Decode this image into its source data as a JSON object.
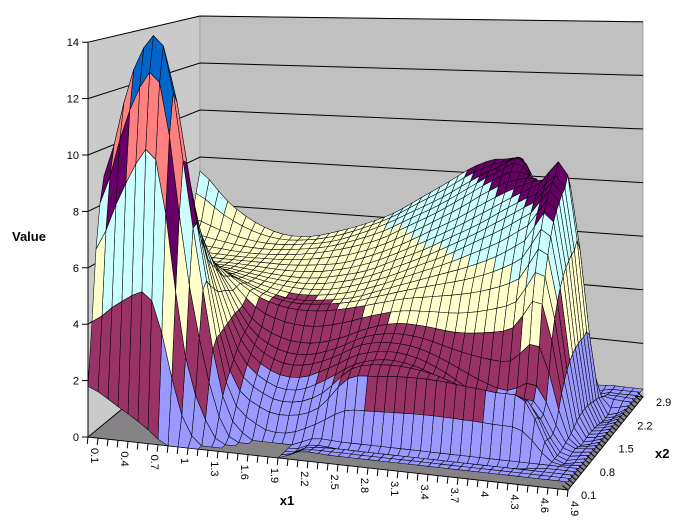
{
  "chart_data": {
    "type": "surface",
    "title": "",
    "value_axis": {
      "title": "Value",
      "min": 0,
      "max": 14,
      "major_unit": 2,
      "tick_labels": [
        "0",
        "2",
        "4",
        "6",
        "8",
        "10",
        "12",
        "14"
      ]
    },
    "x1_axis": {
      "title": "x1",
      "values": [
        0.1,
        0.4,
        0.7,
        1.0,
        1.3,
        1.6,
        1.9,
        2.2,
        2.5,
        2.8,
        3.1,
        3.4,
        3.7,
        4.0,
        4.3,
        4.6,
        4.9
      ],
      "tick_labels": [
        "0.1",
        "0.4",
        "0.7",
        "1",
        "1.3",
        "1.6",
        "1.9",
        "2.2",
        "2.5",
        "2.8",
        "3.1",
        "3.4",
        "3.7",
        "4",
        "4.3",
        "4.6",
        "4.9"
      ],
      "minor_tick_step": 0.1
    },
    "x2_axis": {
      "title": "x2",
      "values": [
        0.1,
        0.3,
        0.5,
        0.7,
        0.9,
        1.1,
        1.3,
        1.5,
        1.7,
        1.9,
        2.1,
        2.3,
        2.5,
        2.7,
        2.9
      ],
      "tick_labels": [
        "0.1",
        "0.8",
        "1.5",
        "2.2",
        "2.9"
      ],
      "minor_tick_step": 0.1
    },
    "bands": [
      {
        "min": 0,
        "max": 2,
        "color": "#9999FF"
      },
      {
        "min": 2,
        "max": 4,
        "color": "#993366"
      },
      {
        "min": 4,
        "max": 6,
        "color": "#FFFFCC"
      },
      {
        "min": 6,
        "max": 8,
        "color": "#CCFFFF"
      },
      {
        "min": 8,
        "max": 10,
        "color": "#660066"
      },
      {
        "min": 10,
        "max": 12,
        "color": "#FF8080"
      },
      {
        "min": 12,
        "max": 14,
        "color": "#0066CC"
      }
    ],
    "values": [
      [
        1.8,
        1.2,
        0.5,
        -0.4,
        -0.8,
        -0.8,
        -0.3,
        0.3,
        0.3,
        0.3,
        0.3,
        0.3,
        0.3,
        0.3,
        0.3,
        0.3,
        0.3
      ],
      [
        6.5,
        9.0,
        10.0,
        3.0,
        0.2,
        -0.5,
        -0.4,
        0.2,
        0.3,
        0.3,
        0.3,
        0.3,
        0.3,
        0.3,
        0.3,
        0.3,
        0.3
      ],
      [
        9.0,
        13.0,
        14.0,
        7.5,
        1.5,
        0.0,
        -0.2,
        0.3,
        0.3,
        0.3,
        0.3,
        0.3,
        0.3,
        0.3,
        0.3,
        0.3,
        0.3
      ],
      [
        8.5,
        11.5,
        12.0,
        7.0,
        2.2,
        1.0,
        0.8,
        1.2,
        2.4,
        2.6,
        2.7,
        2.7,
        2.6,
        2.5,
        2.3,
        0.3,
        0.3
      ],
      [
        7.0,
        9.0,
        9.5,
        6.0,
        2.8,
        1.7,
        1.5,
        2.0,
        2.7,
        3.0,
        2.9,
        2.5,
        1.9,
        1.7,
        1.9,
        0.3,
        0.3
      ],
      [
        5.8,
        7.2,
        7.6,
        5.5,
        3.2,
        2.3,
        2.2,
        2.6,
        3.2,
        3.4,
        3.3,
        2.9,
        2.4,
        2.1,
        2.4,
        0.4,
        0.3
      ],
      [
        5.0,
        6.0,
        6.3,
        5.0,
        3.5,
        2.9,
        2.8,
        3.1,
        3.6,
        3.9,
        3.9,
        3.8,
        3.9,
        4.2,
        5.2,
        0.5,
        0.3
      ],
      [
        4.5,
        5.2,
        5.5,
        4.8,
        4.1,
        3.8,
        3.8,
        4.0,
        4.3,
        4.6,
        4.8,
        5.0,
        5.3,
        5.8,
        6.8,
        0.7,
        0.3
      ],
      [
        4.2,
        4.7,
        4.9,
        4.5,
        4.1,
        3.9,
        4.0,
        4.2,
        4.6,
        5.0,
        5.4,
        5.8,
        6.3,
        7.0,
        7.8,
        0.8,
        0.3
      ],
      [
        4.1,
        4.5,
        4.6,
        4.4,
        4.2,
        4.1,
        4.2,
        4.5,
        4.9,
        5.4,
        5.9,
        6.5,
        7.1,
        7.8,
        8.3,
        0.8,
        0.3
      ],
      [
        4.2,
        4.4,
        4.5,
        4.4,
        4.3,
        4.3,
        4.5,
        4.8,
        5.3,
        5.8,
        6.4,
        7.0,
        7.7,
        8.3,
        8.6,
        0.7,
        0.3
      ],
      [
        4.4,
        4.5,
        4.5,
        4.5,
        4.5,
        4.6,
        4.8,
        5.2,
        5.7,
        6.3,
        6.9,
        7.6,
        8.2,
        8.6,
        8.4,
        0.6,
        0.3
      ],
      [
        4.8,
        4.7,
        4.6,
        4.6,
        4.7,
        4.9,
        5.2,
        5.6,
        6.2,
        6.8,
        7.5,
        8.2,
        8.6,
        7.4,
        1.0,
        0.4,
        0.3
      ],
      [
        5.6,
        5.2,
        4.9,
        4.8,
        4.9,
        5.1,
        5.5,
        6.0,
        6.6,
        7.2,
        7.9,
        8.5,
        8.7,
        5.0,
        0.5,
        0.3,
        0.3
      ],
      [
        7.4,
        6.2,
        5.4,
        5.0,
        5.0,
        5.3,
        5.7,
        6.2,
        6.9,
        7.6,
        8.3,
        8.6,
        8.0,
        2.0,
        0.4,
        0.3,
        0.3
      ]
    ],
    "layout_hints": {
      "grid": true,
      "legend": "none",
      "mesh_step": 0.1
    }
  },
  "colors": {
    "background": "#FFFFFF",
    "back_wall": "#C0C0C0",
    "side_wall": "#CACACA",
    "floor": "#858385",
    "mesh_line": "#000000",
    "gridline": "#000000",
    "text": "#000000"
  }
}
